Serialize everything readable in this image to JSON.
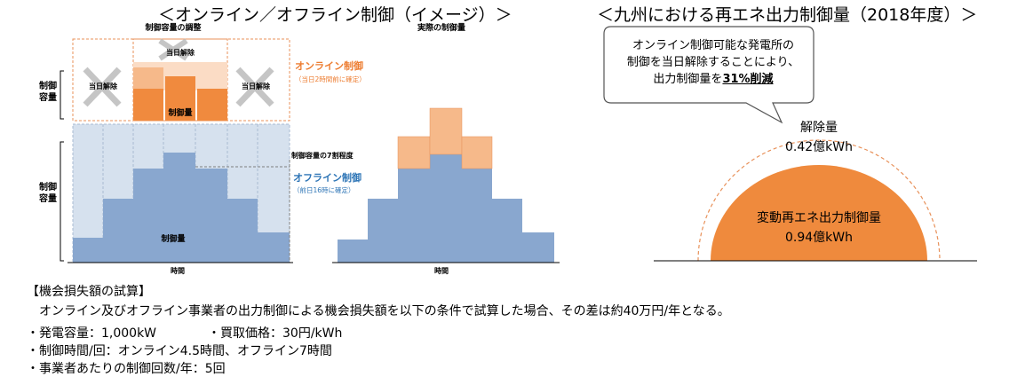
{
  "left_title": "＜オンライン／オフライン制御（イメージ）＞",
  "right_title": "＜九州における再エネ出力制御量（2018年度）＞",
  "left_diagram": {
    "section_title_left": "制御容量の調整",
    "section_title_right": "実際の制御量",
    "axis_label_upper": "制御\n容量",
    "axis_label_lower": "制御\n容量",
    "x_label_left": "時間",
    "x_label_right": "時間",
    "released_label": "当日解除",
    "control_amount_label": "制御量",
    "online_label": "オンライン制御",
    "online_sub": "（当日2時間前に確定）",
    "offline_label": "オフライン制御",
    "offline_sub": "（前日16時に確定）",
    "seventy_label": "制御容量の7割程度",
    "colors": {
      "orange": "#F08A3E",
      "light_orange": "#F6B98A",
      "blue": "#89A7CF",
      "light_blue": "#D6E1EE",
      "dash_orange": "#E8915A"
    }
  },
  "callout": {
    "line1": "オンライン制御可能な発電所の",
    "line2": "制御を当日解除することにより、",
    "line3_pre": "出力制御量を",
    "line3_bold": "31%削減"
  },
  "dome": {
    "release_label": "解除量",
    "release_value": "0.42億kWh",
    "control_label": "変動再エネ出力制御量",
    "control_value": "0.94億kWh",
    "colors": {
      "fill": "#EF8A3D",
      "dash": "#E8915A"
    }
  },
  "notes": {
    "header": "【機会損失額の試算】",
    "summary": "オンライン及びオフライン事業者の出力制御による機会損失額を以下の条件で試算した場合、その差は約40万円/年となる。",
    "bullet1a": "・発電容量：1,000kW",
    "bullet1b": "・買取価格：30円/kWh",
    "bullet2": "・制御時間/回：オンライン4.5時間、オフライン7時間",
    "bullet3": "・事業者あたりの制御回数/年：5回"
  }
}
